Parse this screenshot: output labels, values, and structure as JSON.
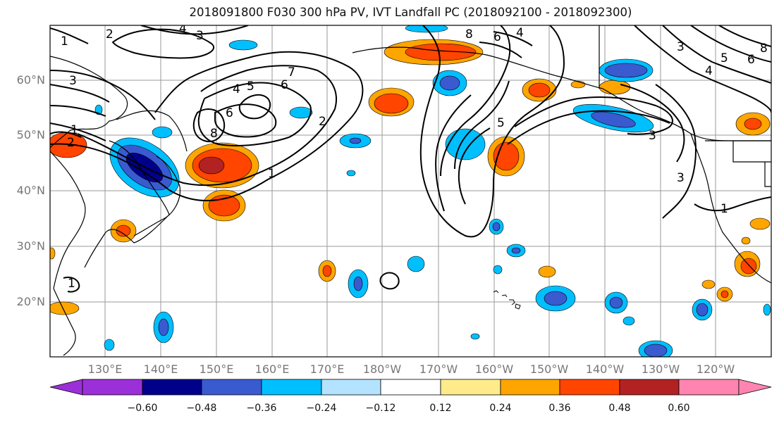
{
  "map": {
    "title": "2018091800 F030 300 hPa PV, IVT Landfall PC (2018092100 - 2018092300)",
    "lat_labels": [
      "60°N",
      "50°N",
      "40°N",
      "30°N",
      "20°N"
    ],
    "lon_labels": [
      "130°E",
      "140°E",
      "150°E",
      "160°E",
      "170°E",
      "180°W",
      "170°W",
      "160°W",
      "150°W",
      "140°W",
      "130°W",
      "120°W"
    ],
    "colorbar": {
      "ticks": [
        "−0.60",
        "−0.48",
        "−0.36",
        "−0.24",
        "−0.12",
        "0.12",
        "0.24",
        "0.36",
        "0.48",
        "0.60"
      ],
      "colors": [
        "#9b30d8",
        "#00008b",
        "#3a5ad0",
        "#00bfff",
        "#b3e3ff",
        "#ffffff",
        "#ffeb8a",
        "#ffa500",
        "#ff4500",
        "#b22222",
        "#ff85b0"
      ]
    },
    "contour_labels": [
      "1",
      "2",
      "3",
      "4",
      "5",
      "6",
      "7",
      "8"
    ]
  }
}
